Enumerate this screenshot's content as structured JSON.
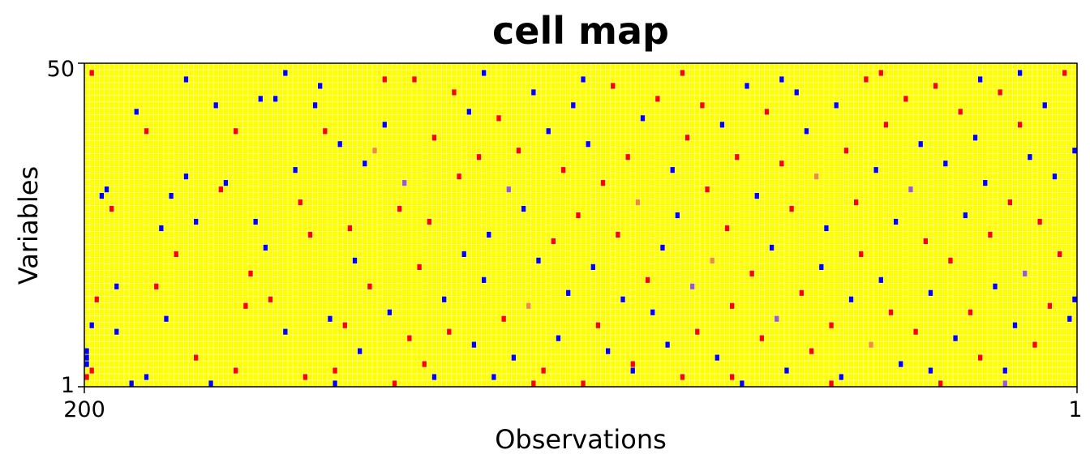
{
  "chart_data": {
    "type": "heatmap",
    "title": "cell map",
    "xlabel": "Observations",
    "ylabel": "Variables",
    "x_tick_labels": [
      "200",
      "1"
    ],
    "y_tick_labels": [
      "50",
      "1"
    ],
    "x_range": [
      200,
      1
    ],
    "y_range": [
      1,
      50
    ],
    "n_observations": 200,
    "n_variables": 50,
    "grid": true,
    "colors": {
      "background": "#FFFF00",
      "gridline": "#FFFFFF",
      "border": "#000000",
      "low": "#0000FF",
      "high": "#FF0000",
      "mid_low": "#9B59D0",
      "mid_high": "#F08A3C"
    },
    "cells_note": "sparse flagged cells; values encoded as -2 (blue), -1 (purple), 1 (orange), 2 (red)",
    "flagged_cells": [
      [
        200,
        2,
        2
      ],
      [
        200,
        4,
        -2
      ],
      [
        200,
        5,
        -2
      ],
      [
        200,
        6,
        -2
      ],
      [
        199,
        10,
        -2
      ],
      [
        199,
        3,
        2
      ],
      [
        198,
        14,
        2
      ],
      [
        197,
        30,
        -2
      ],
      [
        196,
        31,
        -2
      ],
      [
        195,
        28,
        2
      ],
      [
        194,
        9,
        -2
      ],
      [
        194,
        16,
        -2
      ],
      [
        191,
        1,
        -2
      ],
      [
        190,
        43,
        -2
      ],
      [
        188,
        40,
        2
      ],
      [
        186,
        16,
        2
      ],
      [
        185,
        25,
        -2
      ],
      [
        184,
        11,
        -2
      ],
      [
        183,
        30,
        -2
      ],
      [
        182,
        21,
        2
      ],
      [
        180,
        33,
        -2
      ],
      [
        178,
        5,
        2
      ],
      [
        178,
        26,
        -2
      ],
      [
        175,
        1,
        -2
      ],
      [
        174,
        44,
        -2
      ],
      [
        173,
        31,
        2
      ],
      [
        172,
        32,
        -2
      ],
      [
        170,
        40,
        2
      ],
      [
        168,
        13,
        2
      ],
      [
        167,
        18,
        2
      ],
      [
        166,
        26,
        -2
      ],
      [
        165,
        45,
        -2
      ],
      [
        164,
        22,
        -2
      ],
      [
        163,
        14,
        2
      ],
      [
        162,
        45,
        -2
      ],
      [
        160,
        9,
        -2
      ],
      [
        158,
        34,
        -2
      ],
      [
        157,
        29,
        2
      ],
      [
        156,
        2,
        2
      ],
      [
        155,
        24,
        2
      ],
      [
        154,
        44,
        -2
      ],
      [
        153,
        47,
        -2
      ],
      [
        152,
        40,
        2
      ],
      [
        151,
        11,
        -2
      ],
      [
        150,
        3,
        2
      ],
      [
        149,
        38,
        -2
      ],
      [
        148,
        10,
        2
      ],
      [
        147,
        25,
        2
      ],
      [
        146,
        20,
        -2
      ],
      [
        145,
        6,
        -2
      ],
      [
        144,
        35,
        -2
      ],
      [
        143,
        16,
        2
      ],
      [
        142,
        37,
        1
      ],
      [
        140,
        41,
        -2
      ],
      [
        139,
        12,
        -2
      ],
      [
        138,
        1,
        2
      ],
      [
        137,
        28,
        2
      ],
      [
        136,
        32,
        -1
      ],
      [
        135,
        8,
        2
      ],
      [
        134,
        48,
        2
      ],
      [
        133,
        19,
        2
      ],
      [
        132,
        4,
        2
      ],
      [
        131,
        26,
        2
      ],
      [
        130,
        39,
        2
      ],
      [
        128,
        14,
        -2
      ],
      [
        127,
        9,
        2
      ],
      [
        126,
        46,
        2
      ],
      [
        125,
        33,
        2
      ],
      [
        124,
        21,
        -2
      ],
      [
        123,
        43,
        -2
      ],
      [
        122,
        7,
        -2
      ],
      [
        121,
        36,
        2
      ],
      [
        120,
        17,
        -2
      ],
      [
        119,
        24,
        -2
      ],
      [
        118,
        2,
        -2
      ],
      [
        117,
        42,
        2
      ],
      [
        116,
        11,
        2
      ],
      [
        115,
        31,
        -1
      ],
      [
        114,
        5,
        -2
      ],
      [
        113,
        37,
        2
      ],
      [
        112,
        28,
        -2
      ],
      [
        111,
        13,
        1
      ],
      [
        110,
        46,
        -2
      ],
      [
        109,
        20,
        -2
      ],
      [
        108,
        3,
        2
      ],
      [
        107,
        40,
        -2
      ],
      [
        106,
        23,
        2
      ],
      [
        105,
        8,
        -2
      ],
      [
        104,
        34,
        2
      ],
      [
        103,
        15,
        -2
      ],
      [
        102,
        44,
        -2
      ],
      [
        101,
        27,
        2
      ],
      [
        100,
        1,
        2
      ],
      [
        99,
        38,
        -2
      ],
      [
        98,
        19,
        -2
      ],
      [
        97,
        10,
        2
      ],
      [
        96,
        32,
        2
      ],
      [
        95,
        6,
        -2
      ],
      [
        94,
        47,
        2
      ],
      [
        93,
        24,
        2
      ],
      [
        92,
        14,
        -2
      ],
      [
        91,
        36,
        2
      ],
      [
        90,
        4,
        2
      ],
      [
        89,
        29,
        1
      ],
      [
        88,
        42,
        -2
      ],
      [
        87,
        17,
        2
      ],
      [
        86,
        12,
        -2
      ],
      [
        85,
        45,
        2
      ],
      [
        84,
        22,
        -2
      ],
      [
        83,
        7,
        -2
      ],
      [
        82,
        34,
        -2
      ],
      [
        81,
        27,
        -2
      ],
      [
        80,
        2,
        2
      ],
      [
        79,
        39,
        2
      ],
      [
        78,
        16,
        -1
      ],
      [
        77,
        9,
        2
      ],
      [
        76,
        44,
        2
      ],
      [
        75,
        31,
        2
      ],
      [
        74,
        20,
        1
      ],
      [
        73,
        5,
        -2
      ],
      [
        72,
        41,
        -2
      ],
      [
        71,
        25,
        2
      ],
      [
        70,
        13,
        2
      ],
      [
        69,
        36,
        2
      ],
      [
        68,
        1,
        -2
      ],
      [
        67,
        47,
        -2
      ],
      [
        66,
        18,
        2
      ],
      [
        65,
        30,
        -2
      ],
      [
        64,
        8,
        2
      ],
      [
        63,
        43,
        2
      ],
      [
        62,
        22,
        -2
      ],
      [
        61,
        11,
        -1
      ],
      [
        60,
        35,
        2
      ],
      [
        59,
        3,
        -2
      ],
      [
        58,
        28,
        2
      ],
      [
        57,
        46,
        -2
      ],
      [
        56,
        15,
        2
      ],
      [
        55,
        40,
        -2
      ],
      [
        54,
        6,
        2
      ],
      [
        53,
        33,
        1
      ],
      [
        52,
        19,
        -2
      ],
      [
        51,
        25,
        -2
      ],
      [
        50,
        10,
        2
      ],
      [
        49,
        44,
        -2
      ],
      [
        48,
        2,
        -2
      ],
      [
        47,
        37,
        2
      ],
      [
        46,
        14,
        -2
      ],
      [
        45,
        29,
        2
      ],
      [
        44,
        21,
        2
      ],
      [
        43,
        48,
        2
      ],
      [
        42,
        7,
        1
      ],
      [
        41,
        34,
        -2
      ],
      [
        40,
        17,
        -2
      ],
      [
        39,
        41,
        2
      ],
      [
        38,
        12,
        2
      ],
      [
        37,
        26,
        -2
      ],
      [
        36,
        4,
        -2
      ],
      [
        35,
        45,
        2
      ],
      [
        34,
        31,
        -1
      ],
      [
        33,
        9,
        2
      ],
      [
        32,
        38,
        -2
      ],
      [
        31,
        23,
        2
      ],
      [
        30,
        15,
        -2
      ],
      [
        29,
        47,
        2
      ],
      [
        28,
        1,
        2
      ],
      [
        27,
        35,
        -2
      ],
      [
        26,
        20,
        2
      ],
      [
        25,
        8,
        -2
      ],
      [
        24,
        43,
        2
      ],
      [
        23,
        27,
        -2
      ],
      [
        22,
        12,
        2
      ],
      [
        21,
        39,
        -2
      ],
      [
        20,
        5,
        2
      ],
      [
        19,
        32,
        -2
      ],
      [
        18,
        24,
        2
      ],
      [
        17,
        16,
        -2
      ],
      [
        16,
        46,
        2
      ],
      [
        15,
        3,
        -2
      ],
      [
        14,
        29,
        2
      ],
      [
        13,
        10,
        -2
      ],
      [
        12,
        41,
        2
      ],
      [
        11,
        18,
        -1
      ],
      [
        10,
        36,
        -2
      ],
      [
        9,
        7,
        2
      ],
      [
        8,
        26,
        2
      ],
      [
        7,
        44,
        -2
      ],
      [
        6,
        13,
        2
      ],
      [
        5,
        33,
        -2
      ],
      [
        4,
        21,
        2
      ],
      [
        3,
        49,
        2
      ],
      [
        2,
        11,
        -2
      ],
      [
        1,
        14,
        -2
      ],
      [
        1,
        37,
        -2
      ],
      [
        199,
        49,
        2
      ],
      [
        180,
        48,
        -2
      ],
      [
        160,
        49,
        -2
      ],
      [
        140,
        48,
        2
      ],
      [
        120,
        49,
        -2
      ],
      [
        100,
        48,
        -2
      ],
      [
        80,
        49,
        2
      ],
      [
        60,
        48,
        -2
      ],
      [
        40,
        49,
        2
      ],
      [
        20,
        48,
        -2
      ],
      [
        12,
        49,
        -2
      ],
      [
        188,
        2,
        -2
      ],
      [
        170,
        3,
        2
      ],
      [
        150,
        1,
        -2
      ],
      [
        130,
        2,
        -2
      ],
      [
        110,
        1,
        2
      ],
      [
        90,
        3,
        -2
      ],
      [
        70,
        2,
        2
      ],
      [
        50,
        1,
        2
      ],
      [
        30,
        3,
        -2
      ],
      [
        15,
        1,
        -1
      ]
    ]
  }
}
